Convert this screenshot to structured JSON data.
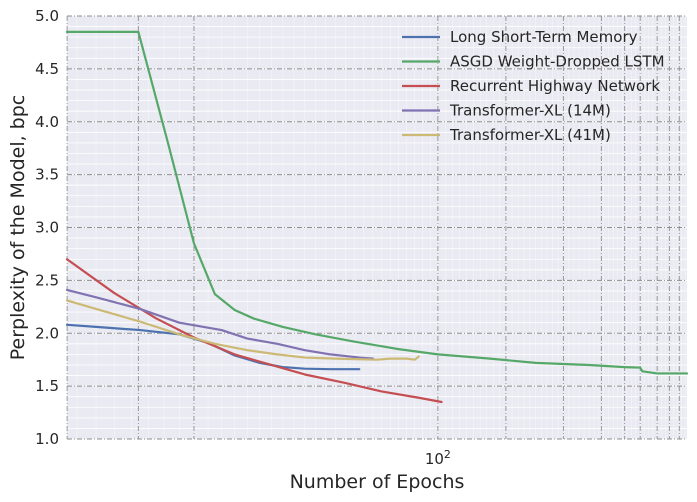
{
  "chart_data": {
    "type": "line",
    "title": "",
    "xlabel": "Number of Epochs",
    "ylabel": "Perplexity of the Model, bpc",
    "xscale": "log",
    "xlim": [
      37,
      195
    ],
    "ylim": [
      1.0,
      5.0
    ],
    "x_major_ticks": [
      100
    ],
    "x_major_tick_labels": [
      "10^2"
    ],
    "x_minor_ticks": [
      40,
      50,
      60,
      70,
      80,
      90,
      200
    ],
    "y_ticks": [
      1.0,
      1.5,
      2.0,
      2.5,
      3.0,
      3.5,
      4.0,
      4.5,
      5.0
    ],
    "y_tick_labels": [
      "1.0",
      "1.5",
      "2.0",
      "2.5",
      "3.0",
      "3.5",
      "4.0",
      "4.5",
      "5.0"
    ],
    "grid": true,
    "legend_position": "top-right",
    "series": [
      {
        "name": "Long Short-Term Memory",
        "color": "#4c72b0",
        "points": [
          [
            37,
            2.08
          ],
          [
            40,
            2.06
          ],
          [
            45,
            2.03
          ],
          [
            50,
            1.99
          ],
          [
            54,
            1.91
          ],
          [
            58,
            1.79
          ],
          [
            62,
            1.72
          ],
          [
            66,
            1.68
          ],
          [
            70,
            1.665
          ],
          [
            75,
            1.66
          ],
          [
            81,
            1.66
          ]
        ]
      },
      {
        "name": "ASGD Weight-Dropped LSTM",
        "color": "#55a868",
        "points": [
          [
            37,
            4.85
          ],
          [
            38,
            4.85
          ],
          [
            42,
            4.85
          ],
          [
            44.8,
            4.85
          ],
          [
            48.5,
            3.8
          ],
          [
            52,
            2.85
          ],
          [
            55,
            2.37
          ],
          [
            58,
            2.22
          ],
          [
            61,
            2.14
          ],
          [
            66,
            2.06
          ],
          [
            72,
            1.99
          ],
          [
            80,
            1.92
          ],
          [
            90,
            1.85
          ],
          [
            100,
            1.8
          ],
          [
            115,
            1.76
          ],
          [
            130,
            1.72
          ],
          [
            150,
            1.7
          ],
          [
            165,
            1.68
          ],
          [
            172,
            1.675
          ],
          [
            173,
            1.64
          ],
          [
            180,
            1.62
          ],
          [
            195,
            1.62
          ]
        ]
      },
      {
        "name": "Recurrent Highway Network",
        "color": "#c44e52",
        "points": [
          [
            37,
            2.7
          ],
          [
            42,
            2.38
          ],
          [
            47,
            2.14
          ],
          [
            52,
            1.96
          ],
          [
            58,
            1.8
          ],
          [
            64,
            1.7
          ],
          [
            70,
            1.61
          ],
          [
            78,
            1.53
          ],
          [
            86,
            1.45
          ],
          [
            95,
            1.39
          ],
          [
            101,
            1.35
          ]
        ]
      },
      {
        "name": "Transformer-XL (14M)",
        "color": "#8172b2",
        "points": [
          [
            37,
            2.41
          ],
          [
            40,
            2.34
          ],
          [
            45,
            2.23
          ],
          [
            50,
            2.1
          ],
          [
            56,
            2.03
          ],
          [
            60,
            1.95
          ],
          [
            65,
            1.9
          ],
          [
            70,
            1.84
          ],
          [
            75,
            1.8
          ],
          [
            81,
            1.77
          ],
          [
            84,
            1.76
          ]
        ]
      },
      {
        "name": "Transformer-XL (41M)",
        "color": "#ccb974",
        "points": [
          [
            37,
            2.31
          ],
          [
            40,
            2.23
          ],
          [
            45,
            2.11
          ],
          [
            50,
            1.99
          ],
          [
            55,
            1.9
          ],
          [
            60,
            1.84
          ],
          [
            65,
            1.8
          ],
          [
            70,
            1.77
          ],
          [
            76,
            1.76
          ],
          [
            80,
            1.755
          ],
          [
            85,
            1.75
          ],
          [
            88,
            1.76
          ],
          [
            92,
            1.76
          ],
          [
            94,
            1.75
          ],
          [
            95,
            1.78
          ]
        ]
      }
    ]
  }
}
